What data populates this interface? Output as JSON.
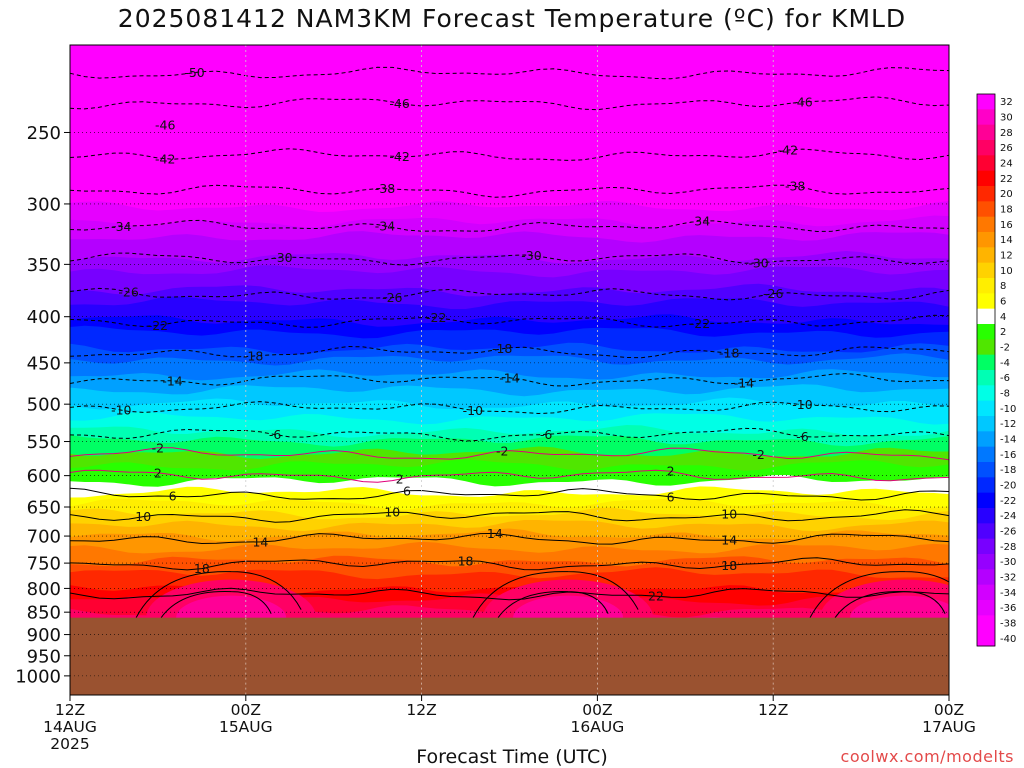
{
  "chart_data": {
    "type": "heatmap",
    "title": "2025081412 NAM3KM Forecast Temperature (ºC) for KMLD",
    "xlabel": "Forecast Time (UTC)",
    "ylabel": "",
    "credit": "coolwx.com/modelts",
    "y_axis": {
      "scale": "log-pressure",
      "unit": "hPa",
      "top": 200,
      "bottom": 1050,
      "ticks": [
        "250",
        "300",
        "350",
        "400",
        "450",
        "500",
        "550",
        "600",
        "650",
        "700",
        "750",
        "800",
        "850",
        "900",
        "950",
        "1000"
      ]
    },
    "x_axis": {
      "range_hours": [
        0,
        60
      ],
      "ticks": [
        {
          "hour": 0,
          "line1": "12Z",
          "line2": "14AUG",
          "line3": "2025"
        },
        {
          "hour": 12,
          "line1": "00Z",
          "line2": "15AUG",
          "line3": ""
        },
        {
          "hour": 24,
          "line1": "12Z",
          "line2": "",
          "line3": ""
        },
        {
          "hour": 36,
          "line1": "00Z",
          "line2": "16AUG",
          "line3": ""
        },
        {
          "hour": 48,
          "line1": "12Z",
          "line2": "",
          "line3": ""
        },
        {
          "hour": 60,
          "line1": "00Z",
          "line2": "17AUG",
          "line3": ""
        }
      ]
    },
    "colorbar": {
      "labels": [
        "32",
        "30",
        "28",
        "26",
        "24",
        "22",
        "20",
        "18",
        "16",
        "14",
        "12",
        "10",
        "8",
        "6",
        "4",
        "2",
        "-2",
        "-4",
        "-6",
        "-8",
        "-10",
        "-12",
        "-14",
        "-16",
        "-18",
        "-20",
        "-22",
        "-24",
        "-26",
        "-28",
        "-30",
        "-32",
        "-34",
        "-36",
        "-38",
        "-40"
      ],
      "colors": [
        "#ff00ff",
        "#ff00c8",
        "#ff0096",
        "#ff0064",
        "#ff0032",
        "#ff0000",
        "#ff2800",
        "#ff5000",
        "#ff7800",
        "#ff9600",
        "#ffb400",
        "#ffd200",
        "#ffee00",
        "#ffff00",
        "#ffffff",
        "#28ff00",
        "#50e600",
        "#00ff64",
        "#00ffb4",
        "#00ffe6",
        "#00e6ff",
        "#00c8ff",
        "#00a0ff",
        "#0078ff",
        "#0050ff",
        "#0028ff",
        "#0000ff",
        "#2800ff",
        "#5000ff",
        "#7800ff",
        "#9600ff",
        "#b400ff",
        "#d200ff",
        "#e600ff",
        "#ff00ff"
      ]
    },
    "ground_pressure": 862,
    "isotherms": [
      {
        "value": -50,
        "pressure": 215
      },
      {
        "value": -46,
        "pressure": 232
      },
      {
        "value": -42,
        "pressure": 265
      },
      {
        "value": -38,
        "pressure": 290
      },
      {
        "value": -34,
        "pressure": 318
      },
      {
        "value": -30,
        "pressure": 345
      },
      {
        "value": -26,
        "pressure": 378
      },
      {
        "value": -22,
        "pressure": 405
      },
      {
        "value": -18,
        "pressure": 438
      },
      {
        "value": -14,
        "pressure": 470
      },
      {
        "value": -10,
        "pressure": 505
      },
      {
        "value": -6,
        "pressure": 540
      },
      {
        "value": -2,
        "pressure": 568
      },
      {
        "value": 2,
        "pressure": 600
      },
      {
        "value": 6,
        "pressure": 630
      },
      {
        "value": 10,
        "pressure": 665
      },
      {
        "value": 14,
        "pressure": 705
      },
      {
        "value": 18,
        "pressure": 752
      },
      {
        "value": 22,
        "pressure": 812
      }
    ],
    "isotherm_labels": [
      {
        "text": "-50",
        "hour": 8.5,
        "value": -50
      },
      {
        "text": "-46",
        "hour": 22.5,
        "value": -46
      },
      {
        "text": "-46",
        "hour": 50,
        "value": -46
      },
      {
        "text": "-46",
        "hour": 6.5,
        "value": -46
      },
      {
        "text": "-42",
        "hour": 6.5,
        "value": -42
      },
      {
        "text": "-42",
        "hour": 22.5,
        "value": -42
      },
      {
        "text": "-42",
        "hour": 49,
        "value": -42
      },
      {
        "text": "-38",
        "hour": 21.5,
        "value": -38
      },
      {
        "text": "-38",
        "hour": 49.5,
        "value": -38
      },
      {
        "text": "-34",
        "hour": 3.5,
        "value": -34
      },
      {
        "text": "-34",
        "hour": 21.5,
        "value": -34
      },
      {
        "text": "-34",
        "hour": 43,
        "value": -34
      },
      {
        "text": "-30",
        "hour": 14.5,
        "value": -30
      },
      {
        "text": "-30",
        "hour": 31.5,
        "value": -30
      },
      {
        "text": "-30",
        "hour": 47,
        "value": -30
      },
      {
        "text": "-26",
        "hour": 4,
        "value": -26
      },
      {
        "text": "-26",
        "hour": 22,
        "value": -26
      },
      {
        "text": "-26",
        "hour": 48,
        "value": -26
      },
      {
        "text": "-22",
        "hour": 6,
        "value": -22
      },
      {
        "text": "-22",
        "hour": 25,
        "value": -22
      },
      {
        "text": "-22",
        "hour": 43,
        "value": -22
      },
      {
        "text": "-18",
        "hour": 12.5,
        "value": -18
      },
      {
        "text": "-18",
        "hour": 29.5,
        "value": -18
      },
      {
        "text": "-18",
        "hour": 45,
        "value": -18
      },
      {
        "text": "-14",
        "hour": 7,
        "value": -14
      },
      {
        "text": "-14",
        "hour": 30,
        "value": -14
      },
      {
        "text": "-14",
        "hour": 46,
        "value": -14
      },
      {
        "text": "-10",
        "hour": 3.5,
        "value": -10
      },
      {
        "text": "-10",
        "hour": 27.5,
        "value": -10
      },
      {
        "text": "-10",
        "hour": 50,
        "value": -10
      },
      {
        "text": "-6",
        "hour": 14,
        "value": -6
      },
      {
        "text": "-6",
        "hour": 32.5,
        "value": -6
      },
      {
        "text": "-6",
        "hour": 50,
        "value": -6
      },
      {
        "text": "-2",
        "hour": 6,
        "value": -2
      },
      {
        "text": "-2",
        "hour": 29.5,
        "value": -2
      },
      {
        "text": "-2",
        "hour": 47,
        "value": -2
      },
      {
        "text": "2",
        "hour": 6,
        "value": 2
      },
      {
        "text": "2",
        "hour": 22.5,
        "value": 2
      },
      {
        "text": "2",
        "hour": 41,
        "value": 2
      },
      {
        "text": "6",
        "hour": 7,
        "value": 6
      },
      {
        "text": "6",
        "hour": 23,
        "value": 6
      },
      {
        "text": "6",
        "hour": 41,
        "value": 6
      },
      {
        "text": "10",
        "hour": 5,
        "value": 10
      },
      {
        "text": "10",
        "hour": 22,
        "value": 10
      },
      {
        "text": "10",
        "hour": 45,
        "value": 10
      },
      {
        "text": "14",
        "hour": 13,
        "value": 14
      },
      {
        "text": "14",
        "hour": 29,
        "value": 14
      },
      {
        "text": "14",
        "hour": 45,
        "value": 14
      },
      {
        "text": "18",
        "hour": 9,
        "value": 18
      },
      {
        "text": "18",
        "hour": 27,
        "value": 18
      },
      {
        "text": "18",
        "hour": 45,
        "value": 18
      },
      {
        "text": "22",
        "hour": 40,
        "value": 22
      }
    ]
  }
}
